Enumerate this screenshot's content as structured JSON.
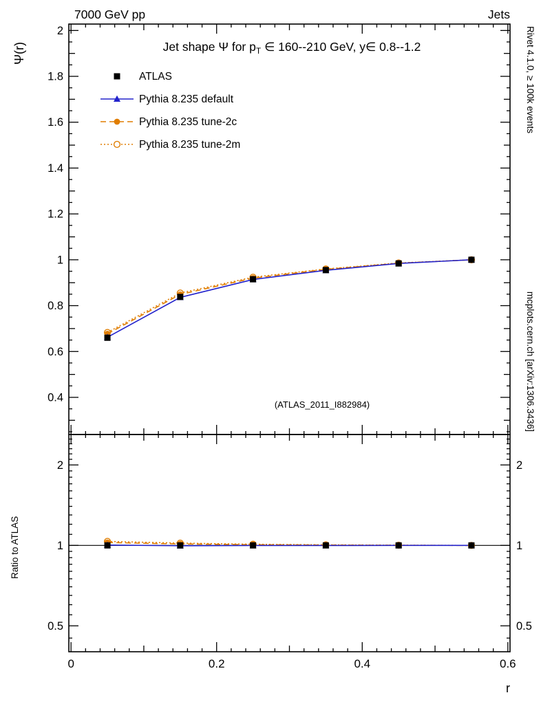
{
  "header": {
    "left": "7000 GeV pp",
    "right": "Jets"
  },
  "title": {
    "pre": "Jet shape Ψ for p",
    "sub": "T",
    "post": " ∈ 160--210 GeV, y∈ 0.8--1.2",
    "full": "Jet shape Ψ for p_T ∈ 160--210 GeV, y∈ 0.8--1.2"
  },
  "watermark": "(ATLAS_2011_I882984)",
  "side_notes": {
    "top": "Rivet 4.1.0, ≥ 100k events",
    "bottom": "mcplots.cern.ch [arXiv:1306.3436]"
  },
  "axes": {
    "main_ylabel": "Ψ(r)",
    "ratio_ylabel": "Ratio to ATLAS",
    "xlabel": "r"
  },
  "colors": {
    "atlas": "#000000",
    "pythia_default": "#2222cc",
    "pythia_tune": "#e07d00",
    "frame": "#000000",
    "note_gray": "#787878",
    "watermark_gray": "#b4b4b4"
  },
  "chart_data": {
    "type": "line",
    "title": "Jet shape Ψ for p_T ∈ 160--210 GeV, y∈ 0.8--1.2",
    "xlabel": "r",
    "ylabel": "Ψ(r)",
    "ratio_ylabel": "Ratio to ATLAS",
    "x": [
      0.05,
      0.15,
      0.25,
      0.35,
      0.45,
      0.55
    ],
    "series": [
      {
        "name": "ATLAS",
        "marker": "square-filled",
        "color": "#000000",
        "line": "none",
        "values": [
          0.66,
          0.838,
          0.915,
          0.955,
          0.984,
          1.0
        ],
        "ratio": [
          1.0,
          1.0,
          1.0,
          1.0,
          1.0,
          1.0
        ]
      },
      {
        "name": "Pythia 8.235 default",
        "marker": "triangle-filled",
        "color": "#2222cc",
        "line": "solid",
        "values": [
          0.662,
          0.836,
          0.914,
          0.954,
          0.984,
          1.0
        ],
        "ratio": [
          1.003,
          0.997,
          0.999,
          0.999,
          1.0,
          1.0
        ]
      },
      {
        "name": "Pythia 8.235 tune-2c",
        "marker": "circle-filled",
        "color": "#e07d00",
        "line": "dashed",
        "values": [
          0.677,
          0.849,
          0.92,
          0.958,
          0.985,
          1.0
        ],
        "ratio": [
          1.025,
          1.013,
          1.006,
          1.003,
          1.001,
          1.0
        ]
      },
      {
        "name": "Pythia 8.235 tune-2m",
        "marker": "circle-open",
        "color": "#e07d00",
        "line": "dotted",
        "values": [
          0.683,
          0.855,
          0.924,
          0.96,
          0.986,
          1.0
        ],
        "ratio": [
          1.035,
          1.02,
          1.01,
          1.005,
          1.002,
          1.0
        ]
      }
    ],
    "xlim": [
      -0.003,
      0.603
    ],
    "xticks": [
      0,
      0.2,
      0.4,
      0.6
    ],
    "main_ylim": [
      0.238,
      2.028
    ],
    "main_yticks": [
      0.4,
      0.6,
      0.8,
      1.0,
      1.2,
      1.4,
      1.6,
      1.8,
      2.0
    ],
    "ratio_ylim": [
      0.4,
      2.6
    ],
    "ratio_scale": "log",
    "ratio_yticks": [
      0.5,
      1,
      2
    ],
    "grid": false,
    "legend_position": "top-left"
  }
}
